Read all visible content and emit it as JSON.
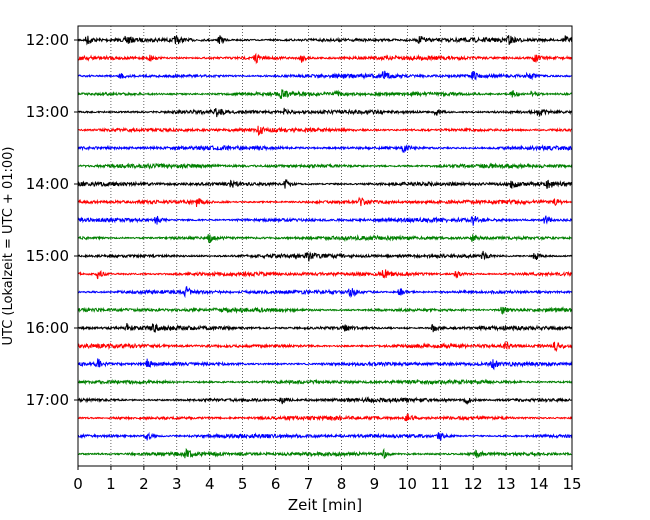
{
  "chart_data": {
    "type": "line",
    "title": "",
    "xlabel": "Zeit  [min]",
    "ylabel": "UTC (Lokalzeit = UTC + 01:00)",
    "xlim": [
      0,
      15
    ],
    "x_ticks": [
      "0",
      "1",
      "2",
      "3",
      "4",
      "5",
      "6",
      "7",
      "8",
      "9",
      "10",
      "11",
      "12",
      "13",
      "14",
      "15"
    ],
    "y_tick_labels": [
      "12:00",
      "13:00",
      "14:00",
      "15:00",
      "16:00",
      "17:00"
    ],
    "grid": "vertical dotted at each minute",
    "trace_interval_minutes": 15,
    "traces": [
      {
        "start": "12:00",
        "color": "#000000",
        "events": [
          0.3,
          1.5,
          3.0,
          4.3,
          10.4,
          13.1,
          14.8
        ]
      },
      {
        "start": "12:15",
        "color": "#ff0000",
        "events": [
          2.2,
          5.4,
          6.8,
          13.9
        ]
      },
      {
        "start": "12:30",
        "color": "#0000ff",
        "events": [
          1.3,
          9.3,
          12.0,
          13.7
        ]
      },
      {
        "start": "12:45",
        "color": "#008000",
        "events": [
          6.2,
          7.8,
          13.2,
          13.8
        ]
      },
      {
        "start": "13:00",
        "color": "#000000",
        "events": [
          4.2,
          6.3,
          10.9,
          14.0
        ]
      },
      {
        "start": "13:15",
        "color": "#ff0000",
        "events": [
          5.5
        ]
      },
      {
        "start": "13:30",
        "color": "#0000ff",
        "events": [
          9.9
        ]
      },
      {
        "start": "13:45",
        "color": "#008000",
        "events": []
      },
      {
        "start": "14:00",
        "color": "#000000",
        "events": [
          4.7,
          6.3,
          13.2,
          14.3
        ]
      },
      {
        "start": "14:15",
        "color": "#ff0000",
        "events": [
          3.6,
          8.6,
          14.5
        ]
      },
      {
        "start": "14:30",
        "color": "#0000ff",
        "events": [
          2.4,
          12.0,
          14.2
        ]
      },
      {
        "start": "14:45",
        "color": "#008000",
        "events": [
          4.0,
          12.0
        ]
      },
      {
        "start": "15:00",
        "color": "#000000",
        "events": [
          7.0,
          12.3,
          13.9
        ]
      },
      {
        "start": "15:15",
        "color": "#ff0000",
        "events": [
          0.6,
          9.3,
          11.5
        ]
      },
      {
        "start": "15:30",
        "color": "#0000ff",
        "events": [
          3.3,
          8.3,
          9.8
        ]
      },
      {
        "start": "15:45",
        "color": "#008000",
        "events": [
          12.9
        ]
      },
      {
        "start": "16:00",
        "color": "#000000",
        "events": [
          1.5,
          2.3,
          8.1,
          10.8
        ]
      },
      {
        "start": "16:15",
        "color": "#ff0000",
        "events": [
          13.0,
          14.5
        ]
      },
      {
        "start": "16:30",
        "color": "#0000ff",
        "events": [
          0.6,
          2.1,
          12.6
        ]
      },
      {
        "start": "16:45",
        "color": "#008000",
        "events": []
      },
      {
        "start": "17:00",
        "color": "#000000",
        "events": [
          6.2,
          11.8
        ]
      },
      {
        "start": "17:15",
        "color": "#ff0000",
        "events": [
          10.0
        ]
      },
      {
        "start": "17:30",
        "color": "#0000ff",
        "events": [
          2.1,
          11.0
        ]
      },
      {
        "start": "17:45",
        "color": "#008000",
        "events": [
          3.3,
          9.3,
          12.1
        ]
      }
    ]
  }
}
